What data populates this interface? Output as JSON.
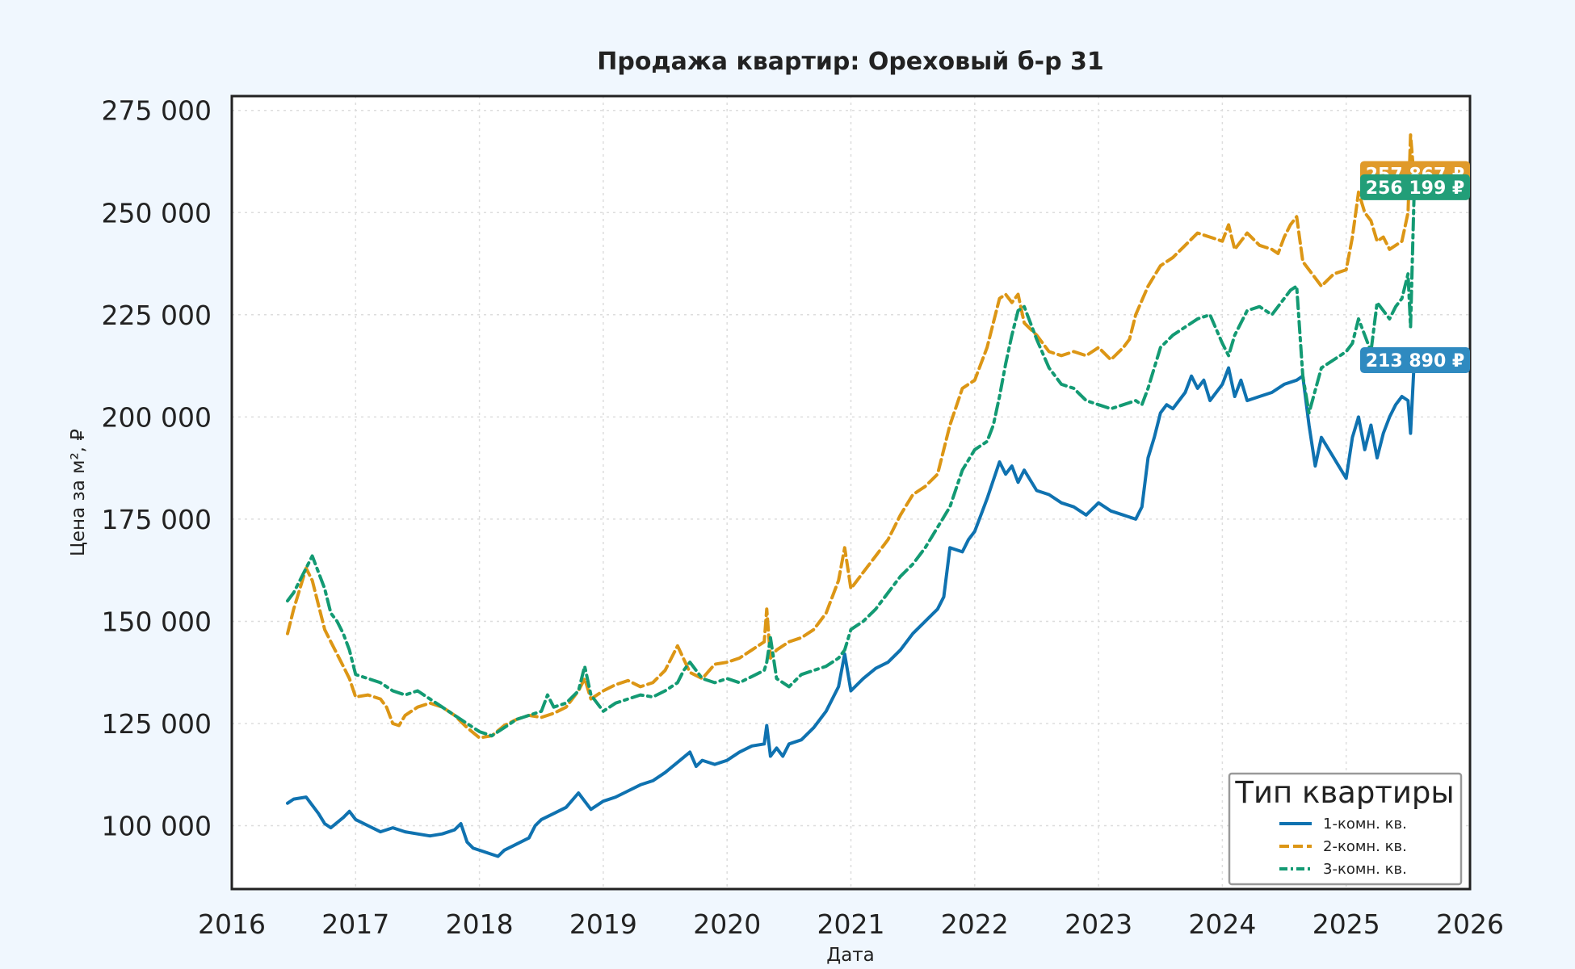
{
  "chart_data": {
    "type": "line",
    "title": "Продажа квартир: Ореховый б-р 31",
    "xlabel": "Дата",
    "ylabel": "Цена за м², ₽",
    "xlim": [
      2016.0,
      2026.0
    ],
    "ylim": [
      84500,
      278500
    ],
    "x_ticks": [
      2016,
      2017,
      2018,
      2019,
      2020,
      2021,
      2022,
      2023,
      2024,
      2025,
      2026
    ],
    "x_tick_labels": [
      "2016",
      "2017",
      "2018",
      "2019",
      "2020",
      "2021",
      "2022",
      "2023",
      "2024",
      "2025",
      "2026"
    ],
    "y_ticks": [
      100000,
      125000,
      150000,
      175000,
      200000,
      225000,
      250000,
      275000
    ],
    "y_tick_labels": [
      "100 000",
      "125 000",
      "150 000",
      "175 000",
      "200 000",
      "225 000",
      "250 000",
      "275 000"
    ],
    "grid": true,
    "legend": {
      "title": "Тип квартиры",
      "position": "bottom-right"
    },
    "series": [
      {
        "name": "1-комн. кв.",
        "color": "#0f72b0",
        "dash": "solid",
        "end_label": "213 890 ₽",
        "x": [
          2016.45,
          2016.5,
          2016.6,
          2016.65,
          2016.7,
          2016.75,
          2016.8,
          2016.9,
          2016.95,
          2017.0,
          2017.1,
          2017.2,
          2017.3,
          2017.4,
          2017.5,
          2017.6,
          2017.7,
          2017.8,
          2017.85,
          2017.9,
          2017.95,
          2018.0,
          2018.1,
          2018.15,
          2018.2,
          2018.3,
          2018.4,
          2018.45,
          2018.5,
          2018.6,
          2018.7,
          2018.8,
          2018.85,
          2018.9,
          2019.0,
          2019.1,
          2019.2,
          2019.3,
          2019.4,
          2019.5,
          2019.6,
          2019.7,
          2019.75,
          2019.8,
          2019.9,
          2020.0,
          2020.1,
          2020.2,
          2020.3,
          2020.32,
          2020.35,
          2020.4,
          2020.45,
          2020.5,
          2020.6,
          2020.7,
          2020.8,
          2020.9,
          2020.95,
          2021.0,
          2021.1,
          2021.2,
          2021.3,
          2021.4,
          2021.5,
          2021.6,
          2021.7,
          2021.75,
          2021.8,
          2021.9,
          2021.95,
          2022.0,
          2022.1,
          2022.2,
          2022.25,
          2022.3,
          2022.35,
          2022.4,
          2022.5,
          2022.6,
          2022.7,
          2022.8,
          2022.9,
          2023.0,
          2023.1,
          2023.2,
          2023.3,
          2023.35,
          2023.4,
          2023.45,
          2023.5,
          2023.55,
          2023.6,
          2023.7,
          2023.75,
          2023.8,
          2023.85,
          2023.9,
          2024.0,
          2024.05,
          2024.1,
          2024.15,
          2024.2,
          2024.3,
          2024.4,
          2024.5,
          2024.6,
          2024.65,
          2024.7,
          2024.75,
          2024.8,
          2024.9,
          2025.0,
          2025.05,
          2025.1,
          2025.15,
          2025.2,
          2025.25,
          2025.3,
          2025.35,
          2025.4,
          2025.45,
          2025.5,
          2025.52,
          2025.55
        ],
        "y": [
          105500,
          106500,
          107000,
          105000,
          103000,
          100500,
          99500,
          102000,
          103500,
          101500,
          100000,
          98500,
          99500,
          98500,
          98000,
          97500,
          98000,
          99000,
          100500,
          96000,
          94500,
          94000,
          93000,
          92500,
          94000,
          95500,
          97000,
          100000,
          101500,
          103000,
          104500,
          108000,
          106000,
          104000,
          106000,
          107000,
          108500,
          110000,
          111000,
          113000,
          115500,
          118000,
          114500,
          116000,
          115000,
          116000,
          118000,
          119500,
          120000,
          124500,
          117000,
          119000,
          117000,
          120000,
          121000,
          124000,
          128000,
          134000,
          142000,
          133000,
          136000,
          138500,
          140000,
          143000,
          147000,
          150000,
          153000,
          156000,
          168000,
          167000,
          170000,
          172000,
          180000,
          189000,
          186000,
          188000,
          184000,
          187000,
          182000,
          181000,
          179000,
          178000,
          176000,
          179000,
          177000,
          176000,
          175000,
          178000,
          190000,
          195000,
          201000,
          203000,
          202000,
          206000,
          210000,
          207000,
          209000,
          204000,
          208000,
          212000,
          205000,
          209000,
          204000,
          205000,
          206000,
          208000,
          209000,
          210000,
          198000,
          188000,
          195000,
          190000,
          185000,
          195000,
          200000,
          192000,
          198000,
          190000,
          196000,
          200000,
          203000,
          205000,
          204000,
          196000,
          213890
        ]
      },
      {
        "name": "2-комн. кв.",
        "color": "#dc9615",
        "dash": "dashed",
        "end_label": "257 867 ₽",
        "x": [
          2016.45,
          2016.5,
          2016.55,
          2016.6,
          2016.65,
          2016.7,
          2016.75,
          2016.8,
          2016.85,
          2016.9,
          2016.95,
          2017.0,
          2017.1,
          2017.2,
          2017.25,
          2017.3,
          2017.35,
          2017.4,
          2017.5,
          2017.6,
          2017.7,
          2017.8,
          2017.9,
          2018.0,
          2018.1,
          2018.2,
          2018.3,
          2018.4,
          2018.5,
          2018.6,
          2018.7,
          2018.8,
          2018.85,
          2018.9,
          2019.0,
          2019.1,
          2019.2,
          2019.3,
          2019.4,
          2019.5,
          2019.55,
          2019.6,
          2019.7,
          2019.8,
          2019.9,
          2020.0,
          2020.1,
          2020.2,
          2020.3,
          2020.32,
          2020.35,
          2020.4,
          2020.5,
          2020.6,
          2020.7,
          2020.8,
          2020.9,
          2020.95,
          2021.0,
          2021.1,
          2021.2,
          2021.3,
          2021.4,
          2021.5,
          2021.6,
          2021.7,
          2021.8,
          2021.9,
          2022.0,
          2022.1,
          2022.15,
          2022.2,
          2022.25,
          2022.3,
          2022.35,
          2022.4,
          2022.5,
          2022.6,
          2022.7,
          2022.8,
          2022.9,
          2023.0,
          2023.1,
          2023.2,
          2023.25,
          2023.3,
          2023.4,
          2023.5,
          2023.6,
          2023.7,
          2023.8,
          2023.9,
          2024.0,
          2024.05,
          2024.1,
          2024.2,
          2024.3,
          2024.4,
          2024.45,
          2024.5,
          2024.55,
          2024.6,
          2024.65,
          2024.7,
          2024.8,
          2024.9,
          2025.0,
          2025.05,
          2025.1,
          2025.15,
          2025.2,
          2025.25,
          2025.3,
          2025.35,
          2025.4,
          2025.45,
          2025.5,
          2025.52,
          2025.55
        ],
        "y": [
          147000,
          153000,
          158000,
          163000,
          160000,
          154000,
          148000,
          145000,
          142000,
          139000,
          136000,
          131500,
          132000,
          131000,
          129000,
          125000,
          124500,
          127000,
          129000,
          130000,
          129000,
          127000,
          124000,
          121500,
          122000,
          124500,
          126000,
          127000,
          126500,
          127500,
          129000,
          133000,
          136000,
          131000,
          133000,
          134500,
          135500,
          134000,
          135000,
          138000,
          141000,
          144000,
          137500,
          136000,
          139500,
          140000,
          141000,
          143000,
          145000,
          153000,
          141000,
          143000,
          145000,
          146000,
          148000,
          152000,
          160000,
          168000,
          158000,
          162000,
          166000,
          170000,
          176000,
          181000,
          183000,
          186000,
          198000,
          207000,
          209000,
          217000,
          223000,
          229000,
          230000,
          228000,
          230000,
          223000,
          220000,
          216000,
          215000,
          216000,
          215000,
          217000,
          214000,
          217000,
          219000,
          225000,
          232000,
          237000,
          239000,
          242000,
          245000,
          244000,
          243000,
          247000,
          241000,
          245000,
          242000,
          241000,
          240000,
          244000,
          247000,
          249000,
          238000,
          236000,
          232000,
          235000,
          236000,
          244000,
          255000,
          250000,
          248000,
          243000,
          244000,
          241000,
          242000,
          243000,
          250000,
          269000,
          257867
        ]
      },
      {
        "name": "3-комн. кв.",
        "color": "#139a73",
        "dash": "dashdot",
        "end_label": "256 199 ₽",
        "x": [
          2016.45,
          2016.5,
          2016.55,
          2016.6,
          2016.65,
          2016.7,
          2016.75,
          2016.8,
          2016.85,
          2016.9,
          2016.95,
          2017.0,
          2017.1,
          2017.2,
          2017.3,
          2017.4,
          2017.5,
          2017.6,
          2017.7,
          2017.8,
          2017.9,
          2018.0,
          2018.1,
          2018.2,
          2018.3,
          2018.4,
          2018.5,
          2018.55,
          2018.6,
          2018.7,
          2018.8,
          2018.85,
          2018.9,
          2019.0,
          2019.1,
          2019.2,
          2019.3,
          2019.4,
          2019.5,
          2019.6,
          2019.65,
          2019.7,
          2019.8,
          2019.9,
          2020.0,
          2020.1,
          2020.2,
          2020.3,
          2020.32,
          2020.35,
          2020.4,
          2020.5,
          2020.6,
          2020.7,
          2020.8,
          2020.9,
          2020.95,
          2021.0,
          2021.1,
          2021.2,
          2021.3,
          2021.4,
          2021.5,
          2021.6,
          2021.7,
          2021.8,
          2021.9,
          2022.0,
          2022.1,
          2022.15,
          2022.2,
          2022.25,
          2022.3,
          2022.35,
          2022.4,
          2022.5,
          2022.6,
          2022.7,
          2022.8,
          2022.9,
          2023.0,
          2023.1,
          2023.2,
          2023.3,
          2023.35,
          2023.4,
          2023.5,
          2023.6,
          2023.7,
          2023.8,
          2023.9,
          2024.0,
          2024.05,
          2024.1,
          2024.2,
          2024.3,
          2024.4,
          2024.5,
          2024.55,
          2024.6,
          2024.65,
          2024.7,
          2024.8,
          2024.9,
          2025.0,
          2025.05,
          2025.1,
          2025.15,
          2025.2,
          2025.25,
          2025.3,
          2025.35,
          2025.4,
          2025.45,
          2025.5,
          2025.52,
          2025.55
        ],
        "y": [
          155000,
          157000,
          160000,
          163000,
          166000,
          162000,
          158000,
          152000,
          150000,
          147000,
          143000,
          137000,
          136000,
          135000,
          133000,
          132000,
          133000,
          131000,
          129000,
          127000,
          125000,
          123000,
          122000,
          124000,
          126000,
          127000,
          128000,
          132000,
          129000,
          130000,
          133000,
          139000,
          132000,
          128000,
          130000,
          131000,
          132000,
          131500,
          133000,
          135000,
          138000,
          140000,
          136000,
          135000,
          136000,
          135000,
          136500,
          138000,
          140000,
          146000,
          136000,
          134000,
          137000,
          138000,
          139000,
          141000,
          143000,
          148000,
          150000,
          153000,
          157000,
          161000,
          164000,
          168000,
          173000,
          178000,
          187000,
          192000,
          194000,
          198000,
          205000,
          213000,
          220000,
          226000,
          227000,
          219000,
          212000,
          208000,
          207000,
          204000,
          203000,
          202000,
          203000,
          204000,
          203000,
          207000,
          217000,
          220000,
          222000,
          224000,
          225000,
          218000,
          215000,
          220000,
          226000,
          227000,
          225000,
          229000,
          231000,
          232000,
          210000,
          201000,
          212000,
          214000,
          216000,
          218000,
          224000,
          220000,
          216000,
          228000,
          226000,
          224000,
          227000,
          229000,
          235000,
          222000,
          256199
        ]
      }
    ]
  }
}
